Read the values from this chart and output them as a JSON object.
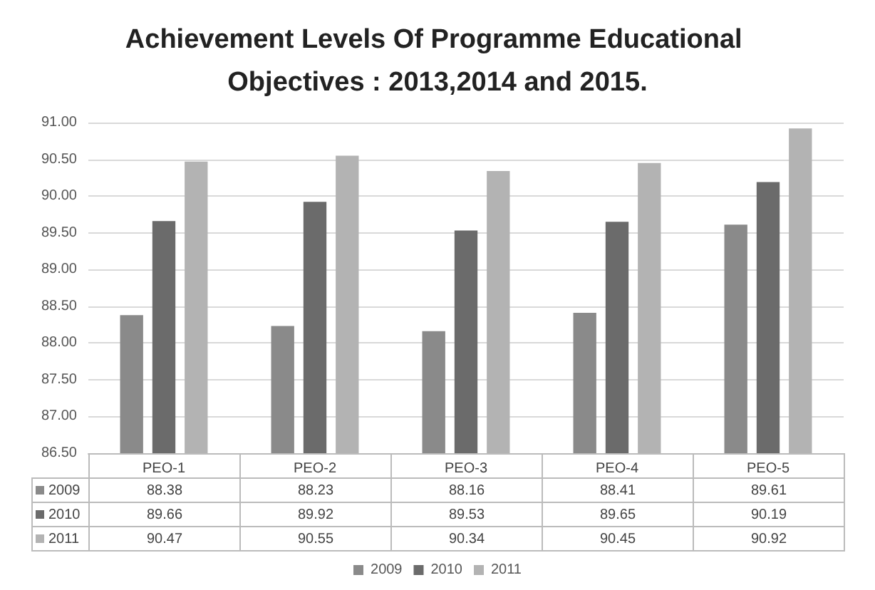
{
  "chart_data": {
    "type": "bar",
    "title": "Achievement Levels Of Programme Educational Objectives : 2013,2014 and 2015.",
    "categories": [
      "PEO-1",
      "PEO-2",
      "PEO-3",
      "PEO-4",
      "PEO-5"
    ],
    "series": [
      {
        "name": "2009",
        "color": "#8a8a8a",
        "values": [
          88.38,
          88.23,
          88.16,
          88.41,
          89.61
        ]
      },
      {
        "name": "2010",
        "color": "#6b6b6b",
        "values": [
          89.66,
          89.92,
          89.53,
          89.65,
          90.19
        ]
      },
      {
        "name": "2011",
        "color": "#b3b3b3",
        "values": [
          90.47,
          90.55,
          90.34,
          90.45,
          90.92
        ]
      }
    ],
    "ylim": [
      86.5,
      91
    ],
    "yticks": [
      {
        "value": 86.5,
        "label": "86.50"
      },
      {
        "value": 87,
        "label": "87.00"
      },
      {
        "value": 87.5,
        "label": "87.50"
      },
      {
        "value": 88,
        "label": "88.00"
      },
      {
        "value": 88.5,
        "label": "88.50"
      },
      {
        "value": 89,
        "label": "89.00"
      },
      {
        "value": 89.5,
        "label": "89.50"
      },
      {
        "value": 90,
        "label": "90.00"
      },
      {
        "value": 90.5,
        "label": "90.50"
      },
      {
        "value": 91,
        "label": "91.00"
      }
    ],
    "grid": "y",
    "legend": "bottom",
    "data_labels": true
  }
}
